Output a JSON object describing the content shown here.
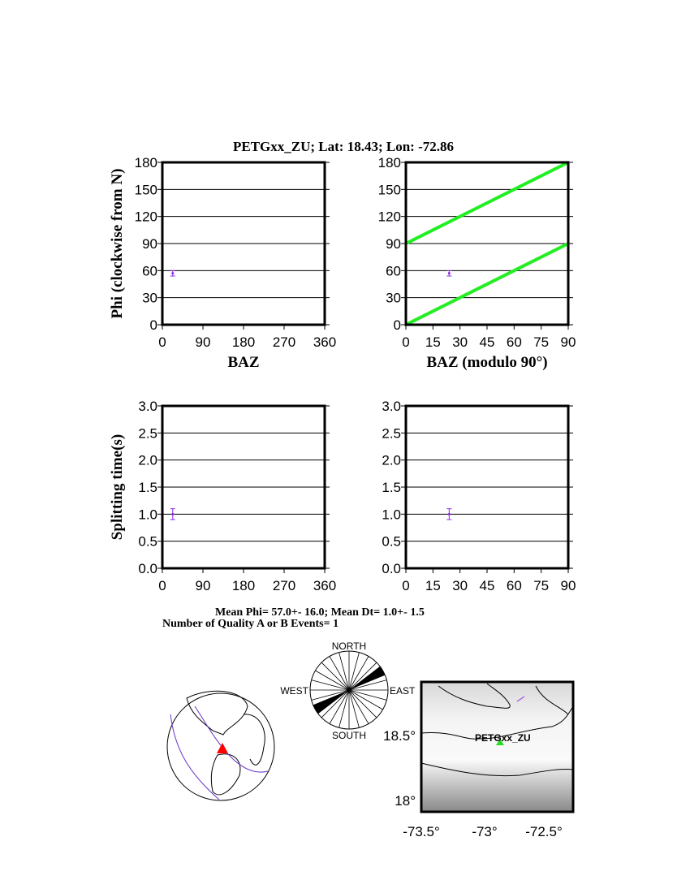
{
  "title": "PETGxx_ZU; Lat:  18.43;  Lon:  -72.86",
  "colors": {
    "data_point": "#8a2be2",
    "reference_lines": "#22ee22",
    "station_global": "#ff0000",
    "station_local": "#22dd22",
    "plate_boundaries": "#6633cc"
  },
  "chart_data": [
    {
      "type": "scatter",
      "ylabel": "Phi (clockwise from N)",
      "xlabel": "BAZ",
      "xlim": [
        0,
        360
      ],
      "ylim": [
        0,
        180
      ],
      "xticks": [
        "0",
        "90",
        "180",
        "270",
        "360"
      ],
      "yticks": [
        "0",
        "30",
        "60",
        "90",
        "120",
        "150",
        "180"
      ],
      "grid": "horizontal",
      "points": [
        {
          "x": 23,
          "y": 57,
          "err": 3
        }
      ]
    },
    {
      "type": "scatter",
      "xlabel": "BAZ (modulo 90°)",
      "xlim": [
        0,
        90
      ],
      "ylim": [
        0,
        180
      ],
      "xticks": [
        "0",
        "15",
        "30",
        "45",
        "60",
        "75",
        "90"
      ],
      "yticks": [
        "0",
        "30",
        "60",
        "90",
        "120",
        "150",
        "180"
      ],
      "grid": "horizontal",
      "points": [
        {
          "x": 24,
          "y": 57,
          "err": 3
        }
      ],
      "reference_lines": [
        [
          [
            0,
            0
          ],
          [
            90,
            90
          ]
        ],
        [
          [
            0,
            90
          ],
          [
            90,
            180
          ]
        ]
      ]
    },
    {
      "type": "scatter",
      "ylabel": "Splitting time(s)",
      "xlim": [
        0,
        360
      ],
      "ylim": [
        0,
        3
      ],
      "xticks": [
        "0",
        "90",
        "180",
        "270",
        "360"
      ],
      "yticks": [
        "0.0",
        "0.5",
        "1.0",
        "1.5",
        "2.0",
        "2.5",
        "3.0"
      ],
      "grid": "horizontal",
      "points": [
        {
          "x": 23,
          "y": 1.0,
          "err": 0.1
        }
      ]
    },
    {
      "type": "scatter",
      "xlim": [
        0,
        90
      ],
      "ylim": [
        0,
        3
      ],
      "xticks": [
        "0",
        "15",
        "30",
        "45",
        "60",
        "75",
        "90"
      ],
      "yticks": [
        "0.0",
        "0.5",
        "1.0",
        "1.5",
        "2.0",
        "2.5",
        "3.0"
      ],
      "grid": "horizontal",
      "points": [
        {
          "x": 24,
          "y": 1.0,
          "err": 0.1
        }
      ]
    }
  ],
  "summary": {
    "line1": "Mean Phi= 57.0+- 16.0; Mean Dt=  1.0+-  1.5",
    "line2": "Number of Quality A or B Events=  1"
  },
  "rose": {
    "north": "NORTH",
    "south": "SOUTH",
    "east": "EAST",
    "west": "WEST",
    "sectors": 24,
    "filled_azimuth_deg": 60
  },
  "map": {
    "station_label": "PETGxx_ZU",
    "lat_ticks": [
      "18.5°",
      "18°"
    ],
    "lon_ticks": [
      "-73.5°",
      "-73°",
      "-72.5°"
    ]
  }
}
